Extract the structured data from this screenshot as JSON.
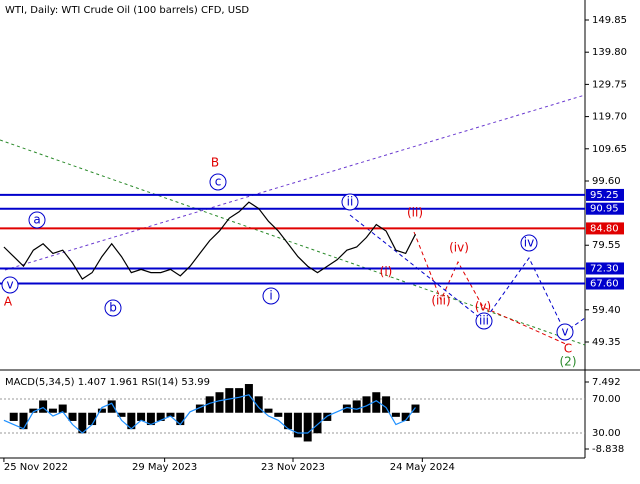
{
  "chart_data": [
    {
      "type": "line",
      "title": "WTI, Daily:  WTI Crude Oil (100 barrels) CFD, USD",
      "xlim": [
        -0.4,
        59.3
      ],
      "xticks": [
        {
          "value": 0,
          "label": "25 Nov 2022"
        },
        {
          "value": 16.4,
          "label": "29 May 2023"
        },
        {
          "value": 29.5,
          "label": "23 Nov 2023"
        },
        {
          "value": 42.7,
          "label": "24 May 2024"
        }
      ],
      "ylim": [
        40.61,
        156.09
      ],
      "yticks": [
        {
          "value": 149.85,
          "label": "149.85"
        },
        {
          "value": 139.8,
          "label": "139.80"
        },
        {
          "value": 129.75,
          "label": "129.75"
        },
        {
          "value": 119.7,
          "label": "119.70"
        },
        {
          "value": 109.65,
          "label": "109.65"
        },
        {
          "value": 99.6,
          "label": "99.60"
        },
        {
          "value": 79.55,
          "label": "79.55"
        },
        {
          "value": 59.4,
          "label": "59.40"
        },
        {
          "value": 49.35,
          "label": "49.35"
        }
      ],
      "levels": [
        {
          "value": 95.25,
          "label": "95.25",
          "color": "#0000cc"
        },
        {
          "value": 90.95,
          "label": "90.95",
          "color": "#0000cc"
        },
        {
          "value": 84.8,
          "label": "84.80",
          "color": "#e00000"
        },
        {
          "value": 72.3,
          "label": "72.30",
          "color": "#0000cc"
        },
        {
          "value": 67.6,
          "label": "67.60",
          "color": "#0000cc"
        }
      ],
      "series": [
        {
          "color": "#000000",
          "values": [
            79,
            76,
            73,
            78,
            80,
            77,
            78,
            74,
            69,
            71,
            76,
            80,
            76,
            71,
            72,
            71,
            71,
            72,
            70,
            73,
            77,
            81,
            84,
            88,
            90,
            93,
            91,
            87,
            84,
            80,
            76,
            73,
            71,
            73,
            75,
            78,
            79,
            82,
            86,
            84,
            78,
            77,
            83
          ]
        }
      ],
      "annotations": [
        "A",
        "v",
        "a",
        "b",
        "B",
        "c",
        "i",
        "ii",
        "(i)",
        "(ii)",
        "(iii)",
        "(iv)",
        "(v)",
        "iii",
        "iv",
        "v",
        "C",
        "(2)"
      ]
    },
    {
      "type": "line",
      "title": "MACD(5,34,5) 1.407 1.961 RSI(14) 53.99",
      "ylim": [
        0.6,
        101.8
      ],
      "yticks": [
        {
          "value": 70,
          "label": "70.00"
        },
        {
          "value": 30,
          "label": "30.00"
        }
      ],
      "y2lim": [
        -11.03,
        9.93
      ],
      "y2ticks": [
        7.492,
        -8.838
      ],
      "series": [
        {
          "type": "bar",
          "axis": "y2",
          "color": "#000000",
          "values": [
            0,
            -2,
            -4,
            1,
            3,
            1,
            2,
            -2,
            -5,
            -3,
            1,
            3,
            -1,
            -4,
            -2,
            -3,
            -2,
            -1,
            -3,
            0,
            2,
            4,
            5,
            6,
            6,
            7,
            4,
            1,
            -1,
            -4,
            -6,
            -7,
            -5,
            -2,
            0,
            2,
            3,
            4,
            5,
            4,
            -1,
            -2,
            2
          ]
        },
        {
          "color": "#1e90ff",
          "values": [
            45,
            40,
            35,
            55,
            60,
            50,
            55,
            40,
            30,
            40,
            60,
            65,
            45,
            35,
            45,
            40,
            45,
            50,
            40,
            55,
            60,
            65,
            68,
            70,
            72,
            75,
            60,
            50,
            45,
            35,
            30,
            30,
            40,
            50,
            55,
            60,
            58,
            62,
            68,
            60,
            40,
            45,
            60
          ]
        }
      ]
    }
  ]
}
